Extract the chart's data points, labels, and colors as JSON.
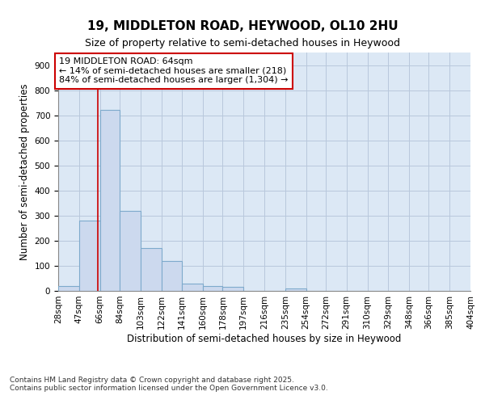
{
  "title_line1": "19, MIDDLETON ROAD, HEYWOOD, OL10 2HU",
  "title_line2": "Size of property relative to semi-detached houses in Heywood",
  "xlabel": "Distribution of semi-detached houses by size in Heywood",
  "ylabel": "Number of semi-detached properties",
  "bin_labels": [
    "28sqm",
    "47sqm",
    "66sqm",
    "84sqm",
    "103sqm",
    "122sqm",
    "141sqm",
    "160sqm",
    "178sqm",
    "197sqm",
    "216sqm",
    "235sqm",
    "254sqm",
    "272sqm",
    "291sqm",
    "310sqm",
    "329sqm",
    "348sqm",
    "366sqm",
    "385sqm",
    "404sqm"
  ],
  "bin_edges": [
    28,
    47,
    66,
    84,
    103,
    122,
    141,
    160,
    178,
    197,
    216,
    235,
    254,
    272,
    291,
    310,
    329,
    348,
    366,
    385,
    404
  ],
  "bar_heights": [
    20,
    280,
    720,
    320,
    170,
    120,
    30,
    20,
    15,
    0,
    0,
    10,
    0,
    0,
    0,
    0,
    0,
    0,
    0,
    0,
    0
  ],
  "bar_color": "#ccd9ee",
  "bar_edge_color": "#7eaacc",
  "vline_x": 64,
  "vline_color": "#cc0000",
  "annotation_text": "19 MIDDLETON ROAD: 64sqm\n← 14% of semi-detached houses are smaller (218)\n84% of semi-detached houses are larger (1,304) →",
  "annotation_box_color": "#cc0000",
  "annotation_bg": "white",
  "ylim": [
    0,
    950
  ],
  "yticks": [
    0,
    100,
    200,
    300,
    400,
    500,
    600,
    700,
    800,
    900
  ],
  "grid_color": "#b8c8dc",
  "bg_color": "#dce8f5",
  "footer": "Contains HM Land Registry data © Crown copyright and database right 2025.\nContains public sector information licensed under the Open Government Licence v3.0.",
  "title_fontsize": 11,
  "subtitle_fontsize": 9,
  "axis_label_fontsize": 8.5,
  "tick_fontsize": 7.5,
  "annotation_fontsize": 8,
  "footer_fontsize": 6.5
}
